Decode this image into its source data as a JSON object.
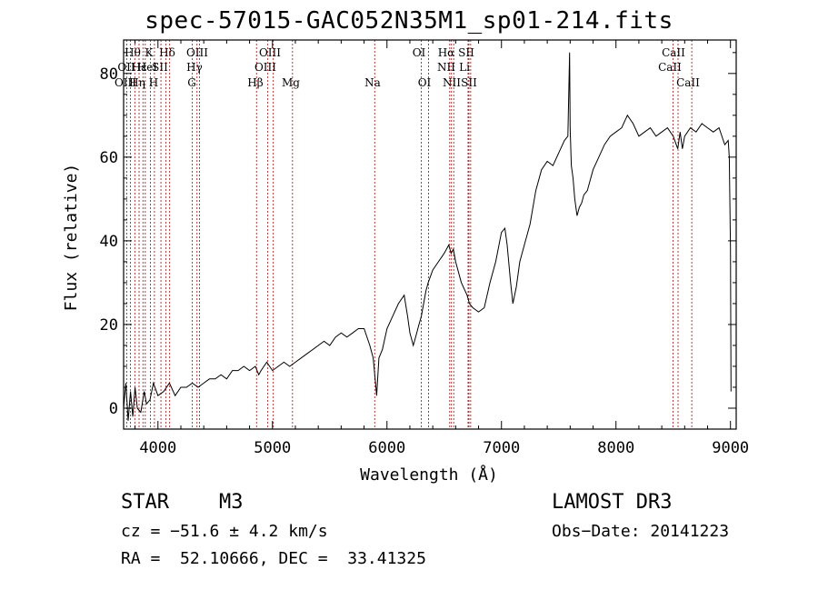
{
  "chart_data": {
    "type": "line",
    "title": "spec-57015-GAC052N35M1_sp01-214.fits",
    "xlabel": "Wavelength (Å)",
    "ylabel": "Flux (relative)",
    "xlim": [
      3700,
      9050
    ],
    "ylim": [
      -5,
      88
    ],
    "xticks": [
      4000,
      5000,
      6000,
      7000,
      8000,
      9000
    ],
    "yticks": [
      0,
      20,
      40,
      60,
      80
    ],
    "series": [
      {
        "name": "spectrum",
        "x": [
          3700,
          3720,
          3740,
          3760,
          3780,
          3800,
          3820,
          3850,
          3880,
          3900,
          3930,
          3960,
          4000,
          4050,
          4100,
          4150,
          4200,
          4250,
          4300,
          4350,
          4400,
          4450,
          4500,
          4550,
          4600,
          4650,
          4700,
          4750,
          4800,
          4850,
          4880,
          4900,
          4950,
          5000,
          5050,
          5100,
          5150,
          5200,
          5250,
          5300,
          5350,
          5400,
          5450,
          5500,
          5550,
          5600,
          5650,
          5700,
          5750,
          5800,
          5850,
          5880,
          5900,
          5910,
          5930,
          5960,
          6000,
          6050,
          6100,
          6150,
          6180,
          6200,
          6230,
          6250,
          6280,
          6300,
          6320,
          6340,
          6360,
          6400,
          6450,
          6500,
          6540,
          6560,
          6580,
          6600,
          6650,
          6700,
          6720,
          6750,
          6800,
          6850,
          6900,
          6950,
          7000,
          7030,
          7050,
          7080,
          7100,
          7130,
          7160,
          7200,
          7250,
          7300,
          7350,
          7400,
          7450,
          7500,
          7550,
          7580,
          7595,
          7600,
          7610,
          7625,
          7640,
          7660,
          7680,
          7700,
          7720,
          7750,
          7800,
          7850,
          7900,
          7950,
          8000,
          8050,
          8100,
          8150,
          8200,
          8250,
          8300,
          8350,
          8400,
          8450,
          8500,
          8540,
          8560,
          8580,
          8600,
          8650,
          8700,
          8750,
          8800,
          8850,
          8900,
          8950,
          8980,
          8990,
          9000,
          9005
        ],
        "y": [
          0,
          6,
          -3,
          4,
          -2,
          5,
          0,
          -1,
          4,
          1,
          2,
          6,
          3,
          4,
          6,
          3,
          5,
          5,
          6,
          5,
          6,
          7,
          7,
          8,
          7,
          9,
          9,
          10,
          9,
          10,
          8,
          9,
          11,
          9,
          10,
          11,
          10,
          11,
          12,
          13,
          14,
          15,
          16,
          15,
          17,
          18,
          17,
          18,
          19,
          19,
          15,
          12,
          6,
          3,
          12,
          14,
          19,
          22,
          25,
          27,
          22,
          18,
          15,
          17,
          20,
          22,
          25,
          28,
          30,
          33,
          35,
          37,
          39,
          37,
          38,
          35,
          30,
          27,
          25,
          24,
          23,
          24,
          30,
          35,
          42,
          43,
          39,
          30,
          25,
          29,
          35,
          39,
          44,
          52,
          57,
          59,
          58,
          61,
          64,
          65,
          85,
          67,
          58,
          55,
          50,
          46,
          48,
          49,
          51,
          52,
          57,
          60,
          63,
          65,
          66,
          67,
          70,
          68,
          65,
          66,
          67,
          65,
          66,
          67,
          65,
          62,
          66,
          62,
          65,
          67,
          66,
          68,
          67,
          66,
          67,
          63,
          64,
          60,
          38,
          4
        ]
      }
    ],
    "lines": {
      "row1": [
        "Hθ",
        "K",
        "Hδ",
        "OIII",
        "OIII",
        "OI",
        "Hα",
        "SII",
        "CaII"
      ],
      "row2": [
        "OII",
        "Hε",
        "HeI",
        "SII",
        "Hγ",
        "OIII",
        "NII",
        "Li",
        "CaII"
      ],
      "row3": [
        "OIII",
        "Hη",
        "H",
        "G",
        "Hβ",
        "Mg",
        "Na",
        "OI",
        "NII",
        "SII",
        "CaII"
      ]
    }
  },
  "info": {
    "class": "STAR",
    "subclass": "M3",
    "survey": "LAMOST DR3",
    "cz": "cz = −51.6 ± 4.2 km/s",
    "obsdate": "Obs−Date: 20141223",
    "radec": "RA =  52.10666, DEC =  33.41325"
  },
  "colors": {
    "spectrum": "#000000",
    "line_marker": "#b22222"
  }
}
